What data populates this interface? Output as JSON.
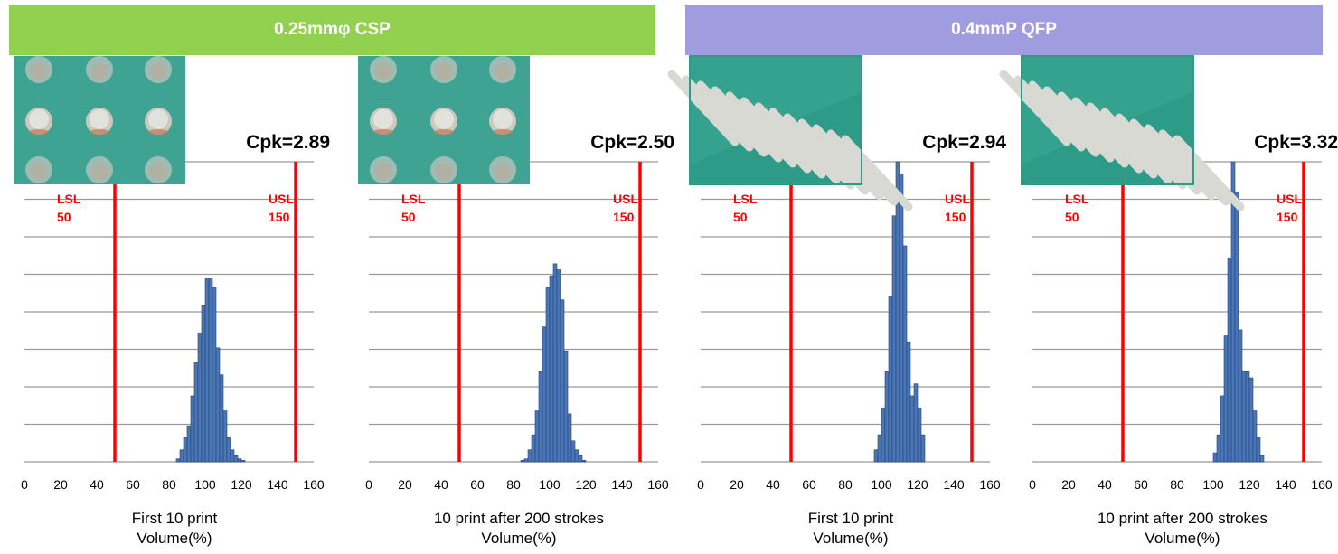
{
  "banners": [
    {
      "text": "0.25mmφ  CSP",
      "color": "#92d050"
    },
    {
      "text": "0.4mmP QFP",
      "color": "#a09ce0"
    }
  ],
  "colors": {
    "bars": "#4a76b8",
    "bar_edge": "#23436f",
    "limits": "#ff0000",
    "grid": "#9a9a9a"
  },
  "chart_data": [
    {
      "type": "bar",
      "group": "0.25mmφ  CSP",
      "title": "Cpk=2.89",
      "caption": "First 10 print",
      "xlabel": "Volume(%)",
      "xlim": [
        0,
        160
      ],
      "x_ticks": [
        0,
        20,
        40,
        60,
        80,
        100,
        120,
        140,
        160
      ],
      "bin_width": 2,
      "bin_centers": [
        85,
        87,
        89,
        91,
        93,
        95,
        97,
        99,
        101,
        103,
        105,
        107,
        109,
        111,
        113,
        115,
        117,
        119,
        121
      ],
      "values": [
        1,
        4,
        8,
        12,
        22,
        33,
        43,
        52,
        61,
        61,
        58,
        38,
        29,
        17,
        8,
        4,
        2,
        1,
        0.5
      ],
      "y_max": 100,
      "gridlines": 8,
      "lsl": {
        "value": 50,
        "label": "LSL",
        "value_label": "50"
      },
      "usl": {
        "value": 150,
        "label": "USL",
        "value_label": "150"
      },
      "photo": "solder-bump-array"
    },
    {
      "type": "bar",
      "group": "0.25mmφ  CSP",
      "title": "Cpk=2.50",
      "caption": "10 print after 200 strokes",
      "xlabel": "Volume(%)",
      "xlim": [
        0,
        160
      ],
      "x_ticks": [
        0,
        20,
        40,
        60,
        80,
        100,
        120,
        140,
        160
      ],
      "bin_width": 2,
      "bin_centers": [
        85,
        87,
        89,
        91,
        93,
        95,
        97,
        99,
        101,
        103,
        105,
        107,
        109,
        111,
        113,
        115,
        117,
        119
      ],
      "values": [
        0.5,
        1,
        4,
        9,
        17,
        30,
        45,
        58,
        62,
        66,
        64,
        54,
        37,
        16,
        7,
        4,
        2,
        0.5
      ],
      "y_max": 100,
      "gridlines": 8,
      "lsl": {
        "value": 50,
        "label": "LSL",
        "value_label": "50"
      },
      "usl": {
        "value": 150,
        "label": "USL",
        "value_label": "150"
      },
      "photo": "solder-bump-array"
    },
    {
      "type": "bar",
      "group": "0.4mmP QFP",
      "title": "Cpk=2.94",
      "caption": "First 10 print",
      "xlabel": "Volume(%)",
      "xlim": [
        0,
        160
      ],
      "x_ticks": [
        0,
        20,
        40,
        60,
        80,
        100,
        120,
        140,
        160
      ],
      "bin_width": 2,
      "bin_centers": [
        97,
        99,
        101,
        103,
        105,
        107,
        109,
        111,
        113,
        115,
        117,
        119,
        121,
        123
      ],
      "values": [
        4,
        9,
        18,
        30,
        55,
        82,
        100,
        96,
        72,
        40,
        22,
        26,
        18,
        9
      ],
      "y_max": 100,
      "gridlines": 8,
      "lsl": {
        "value": 50,
        "label": "LSL",
        "value_label": "50"
      },
      "usl": {
        "value": 150,
        "label": "USL",
        "value_label": "150"
      },
      "photo": "qfp-paste-lines"
    },
    {
      "type": "bar",
      "group": "0.4mmP QFP",
      "title": "Cpk=3.32",
      "caption": "10 print after 200 strokes",
      "xlabel": "Volume(%)",
      "xlim": [
        0,
        160
      ],
      "x_ticks": [
        0,
        20,
        40,
        60,
        80,
        100,
        120,
        140,
        160
      ],
      "bin_width": 2,
      "bin_centers": [
        101,
        103,
        105,
        107,
        109,
        111,
        113,
        115,
        117,
        119,
        121,
        123,
        125,
        127
      ],
      "values": [
        3,
        9,
        22,
        42,
        68,
        100,
        90,
        44,
        30,
        30,
        28,
        17,
        8,
        2
      ],
      "y_max": 100,
      "gridlines": 8,
      "lsl": {
        "value": 50,
        "label": "LSL",
        "value_label": "50"
      },
      "usl": {
        "value": 150,
        "label": "USL",
        "value_label": "150"
      },
      "photo": "qfp-paste-lines"
    }
  ]
}
